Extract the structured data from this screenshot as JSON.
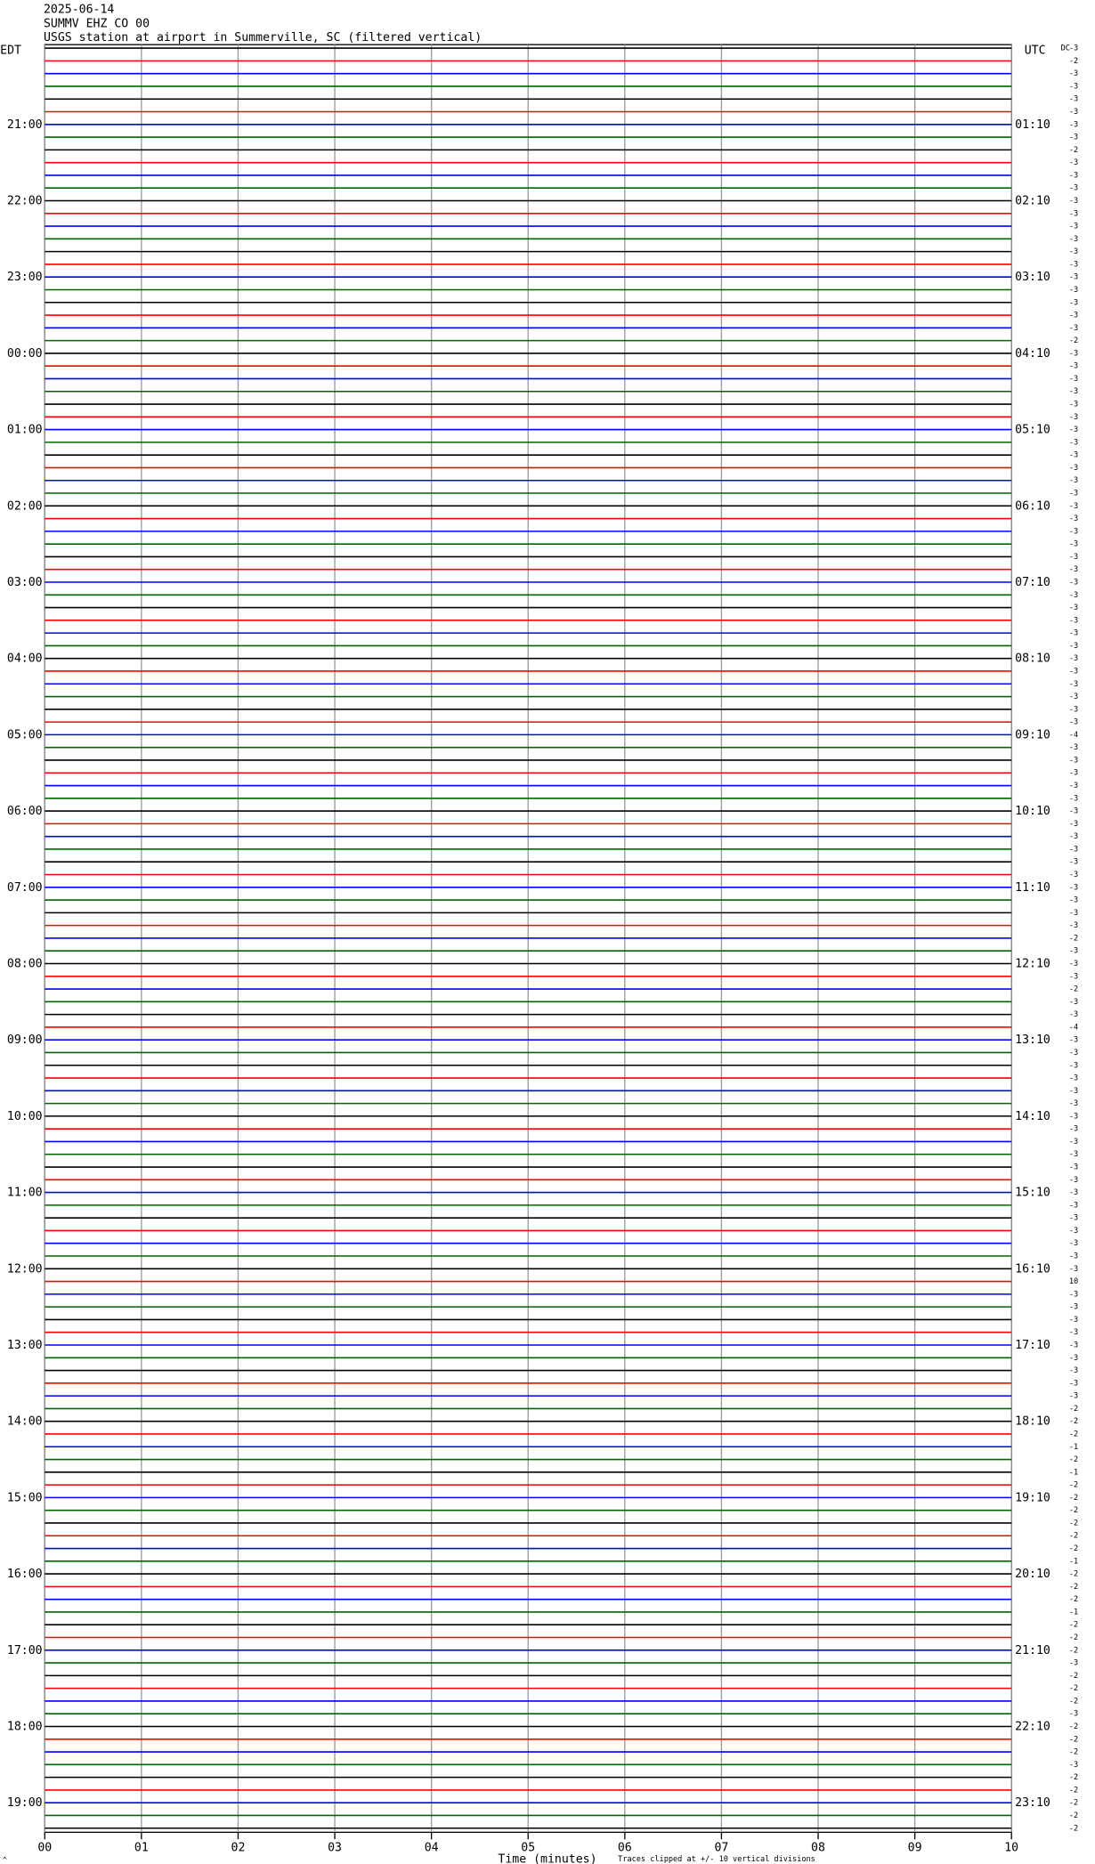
{
  "chart_data": {
    "type": "helicorder",
    "title": "2025-06-14",
    "subtitle": "SUMMV EHZ CO 00",
    "station": "USGS station at airport in Summerville, SC (filtered vertical)",
    "left_label": "EDT",
    "right_label": "UTC",
    "dc_label": "DC",
    "left_hour_labels": [
      "21:00",
      "22:00",
      "23:00",
      "00:00",
      "01:00",
      "02:00",
      "03:00",
      "04:00",
      "05:00",
      "06:00",
      "07:00",
      "08:00",
      "09:00",
      "10:00",
      "11:00",
      "12:00",
      "13:00",
      "14:00",
      "15:00",
      "16:00",
      "17:00",
      "18:00",
      "19:00"
    ],
    "right_hour_labels": [
      "01:10",
      "02:10",
      "03:10",
      "04:10",
      "05:10",
      "06:10",
      "07:10",
      "08:10",
      "09:10",
      "10:10",
      "11:10",
      "12:10",
      "13:10",
      "14:10",
      "15:10",
      "16:10",
      "17:10",
      "18:10",
      "19:10",
      "20:10",
      "21:10",
      "22:10",
      "23:10"
    ],
    "dc_offsets": [
      -3,
      -2,
      -3,
      -3,
      -3,
      -3,
      -3,
      -3,
      -2,
      -3,
      -3,
      -3,
      -3,
      -3,
      -3,
      -3,
      -3,
      -3,
      -3,
      -3,
      -3,
      -3,
      -3,
      -2,
      -3,
      -3,
      -3,
      -3,
      -3,
      -3,
      -3,
      -3,
      -3,
      -3,
      -3,
      -3,
      -3,
      -3,
      -3,
      -3,
      -3,
      -3,
      -3,
      -3,
      -3,
      -3,
      -3,
      -3,
      -3,
      -3,
      -3,
      -3,
      -3,
      -3,
      -4,
      -3,
      -3,
      -3,
      -3,
      -3,
      -3,
      -3,
      -3,
      -3,
      -3,
      -3,
      -3,
      -3,
      -3,
      -3,
      -2,
      -3,
      -3,
      -3,
      -2,
      -3,
      -3,
      -4,
      -3,
      -3,
      -3,
      -3,
      -3,
      -3,
      -3,
      -3,
      -3,
      -3,
      -3,
      -3,
      -3,
      -3,
      -3,
      -3,
      -3,
      -3,
      -3,
      10,
      -3,
      -3,
      -3,
      -3,
      -3,
      -3,
      -3,
      -3,
      -3,
      -2,
      -2,
      -2,
      -1,
      -2,
      -1,
      -2,
      -2,
      -2,
      -2,
      -2,
      -2,
      -1,
      -2,
      -2,
      -2,
      -1,
      -2,
      -2,
      -2,
      -3,
      -2,
      -2,
      -2,
      -3,
      -2,
      -2,
      -2,
      -3,
      -2,
      -2,
      -2,
      -2,
      -2
    ],
    "trace_colors": [
      "#000000",
      "#ff0000",
      "#0000ff",
      "#006400"
    ],
    "xlim": [
      0,
      10
    ],
    "xticks": [
      {
        "value": 0,
        "label": "00"
      },
      {
        "value": 1,
        "label": "01"
      },
      {
        "value": 2,
        "label": "02"
      },
      {
        "value": 3,
        "label": "03"
      },
      {
        "value": 4,
        "label": "04"
      },
      {
        "value": 5,
        "label": "05"
      },
      {
        "value": 6,
        "label": "06"
      },
      {
        "value": 7,
        "label": "07"
      },
      {
        "value": 8,
        "label": "08"
      },
      {
        "value": 9,
        "label": "09"
      },
      {
        "value": 10,
        "label": "10"
      }
    ],
    "xlabel": "Time (minutes)",
    "note": "Traces clipped at +/- 10 vertical divisions",
    "corner_mark": "^",
    "grid": true
  }
}
